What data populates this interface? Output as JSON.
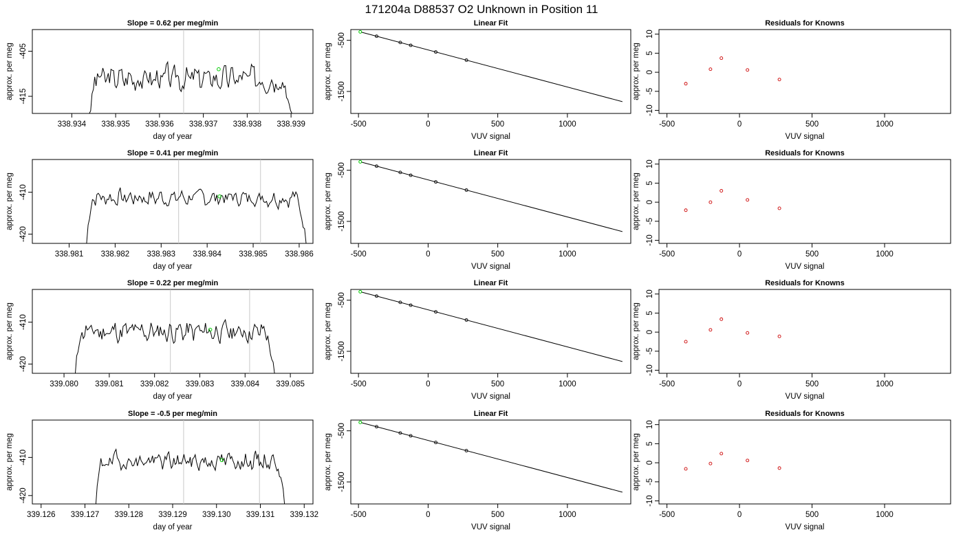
{
  "figure": {
    "title": "171204a      D88537   O2 Unknown in Position  11",
    "colors": {
      "trace": "#000000",
      "marker_green": "#00cc00",
      "marker_red": "#cc0000",
      "vline": "#c8c8c8"
    }
  },
  "chart_data": [
    {
      "type": "line",
      "row": 0,
      "col": 0,
      "title": "Slope =  0.62  per meg/min",
      "xlabel": "day of year",
      "ylabel": "approx. per meg",
      "xlim": [
        338.9331,
        338.9395
      ],
      "ylim": [
        -418.8,
        -400.2
      ],
      "xticks": [
        "338.934",
        "338.935",
        "338.936",
        "338.937",
        "338.938",
        "338.939"
      ],
      "yticks": [
        "-405",
        "-415"
      ],
      "vlines": [
        338.93655,
        338.93828
      ],
      "marker": {
        "x": 338.93735,
        "y": -409.0
      },
      "series": {
        "t_start": 338.9344,
        "t_end": 338.93902,
        "baseline": -411.0,
        "amplitude": 2.2,
        "edge_low": -419.5,
        "seed": 3
      }
    },
    {
      "type": "scatter",
      "row": 0,
      "col": 1,
      "title": "Linear Fit",
      "xlabel": "VUV signal",
      "ylabel": "approx. per meg",
      "xlim": [
        -555,
        1455
      ],
      "ylim": [
        -1930,
        -290
      ],
      "xticks": [
        "-500",
        "0",
        "500",
        "1000"
      ],
      "yticks": [
        "-500",
        "-1500"
      ],
      "fit_line": [
        [
          -480,
          -340
        ],
        [
          1395,
          -1700
        ]
      ],
      "points": [
        [
          -370,
          -420
        ],
        [
          -200,
          -543
        ],
        [
          -125,
          -598
        ],
        [
          55,
          -728
        ],
        [
          275,
          -888
        ]
      ],
      "highlight": [
        -487,
        -335
      ]
    },
    {
      "type": "scatter",
      "row": 0,
      "col": 2,
      "title": "Residuals for Knowns",
      "xlabel": "VUV signal",
      "ylabel": "approx. per meg",
      "xlim": [
        -555,
        1455
      ],
      "ylim": [
        -10.8,
        11.2
      ],
      "xticks": [
        "-500",
        "0",
        "500",
        "1000"
      ],
      "yticks": [
        "-10",
        "-5",
        "0",
        "5",
        "10"
      ],
      "points": [
        [
          -370,
          -3.0
        ],
        [
          -200,
          0.8
        ],
        [
          -125,
          3.7
        ],
        [
          55,
          0.6
        ],
        [
          275,
          -1.9
        ]
      ]
    },
    {
      "type": "line",
      "row": 1,
      "col": 0,
      "title": "Slope =  0.41  per meg/min",
      "xlabel": "day of year",
      "ylabel": "approx. per meg",
      "xlim": [
        338.9802,
        338.9863
      ],
      "ylim": [
        -422.2,
        -402.2
      ],
      "xticks": [
        "338.981",
        "338.982",
        "338.983",
        "338.984",
        "338.985",
        "338.986"
      ],
      "yticks": [
        "-410",
        "-420"
      ],
      "vlines": [
        338.98338,
        338.98516
      ],
      "marker": {
        "x": 338.98427,
        "y": -411.0
      },
      "series": {
        "t_start": 338.98138,
        "t_end": 338.98615,
        "baseline": -411.3,
        "amplitude": 1.6,
        "edge_low": -423.0,
        "seed": 7
      }
    },
    {
      "type": "scatter",
      "row": 1,
      "col": 1,
      "title": "Linear Fit",
      "xlabel": "VUV signal",
      "ylabel": "approx. per meg",
      "xlim": [
        -555,
        1455
      ],
      "ylim": [
        -1930,
        -290
      ],
      "xticks": [
        "-500",
        "0",
        "500",
        "1000"
      ],
      "yticks": [
        "-500",
        "-1500"
      ],
      "fit_line": [
        [
          -480,
          -340
        ],
        [
          1395,
          -1700
        ]
      ],
      "points": [
        [
          -370,
          -420
        ],
        [
          -200,
          -543
        ],
        [
          -125,
          -598
        ],
        [
          55,
          -728
        ],
        [
          275,
          -888
        ]
      ],
      "highlight": [
        -487,
        -335
      ]
    },
    {
      "type": "scatter",
      "row": 1,
      "col": 2,
      "title": "Residuals for Knowns",
      "xlabel": "VUV signal",
      "ylabel": "approx. per meg",
      "xlim": [
        -555,
        1455
      ],
      "ylim": [
        -10.8,
        11.2
      ],
      "xticks": [
        "-500",
        "0",
        "500",
        "1000"
      ],
      "yticks": [
        "-10",
        "-5",
        "0",
        "5",
        "10"
      ],
      "points": [
        [
          -370,
          -2.1
        ],
        [
          -200,
          0.0
        ],
        [
          -125,
          3.0
        ],
        [
          55,
          0.6
        ],
        [
          275,
          -1.6
        ]
      ]
    },
    {
      "type": "line",
      "row": 2,
      "col": 0,
      "title": "Slope =  0.22  per meg/min",
      "xlabel": "day of year",
      "ylabel": "approx. per meg",
      "xlim": [
        339.0793,
        339.0855
      ],
      "ylim": [
        -422.2,
        -402.2
      ],
      "xticks": [
        "339.080",
        "339.081",
        "339.082",
        "339.083",
        "339.084",
        "339.085"
      ],
      "yticks": [
        "-410",
        "-420"
      ],
      "vlines": [
        339.08235,
        339.0841
      ],
      "marker": {
        "x": 339.08323,
        "y": -411.8
      },
      "series": {
        "t_start": 339.08025,
        "t_end": 339.08465,
        "baseline": -412.3,
        "amplitude": 2.0,
        "edge_low": -423.0,
        "seed": 11
      }
    },
    {
      "type": "scatter",
      "row": 2,
      "col": 1,
      "title": "Linear Fit",
      "xlabel": "VUV signal",
      "ylabel": "approx. per meg",
      "xlim": [
        -555,
        1455
      ],
      "ylim": [
        -1930,
        -290
      ],
      "xticks": [
        "-500",
        "0",
        "500",
        "1000"
      ],
      "yticks": [
        "-500",
        "-1500"
      ],
      "fit_line": [
        [
          -480,
          -340
        ],
        [
          1395,
          -1700
        ]
      ],
      "points": [
        [
          -370,
          -420
        ],
        [
          -200,
          -543
        ],
        [
          -125,
          -598
        ],
        [
          55,
          -728
        ],
        [
          275,
          -888
        ]
      ],
      "highlight": [
        -487,
        -335
      ]
    },
    {
      "type": "scatter",
      "row": 2,
      "col": 2,
      "title": "Residuals for Knowns",
      "xlabel": "VUV signal",
      "ylabel": "approx. per meg",
      "xlim": [
        -555,
        1455
      ],
      "ylim": [
        -10.8,
        11.2
      ],
      "xticks": [
        "-500",
        "0",
        "500",
        "1000"
      ],
      "yticks": [
        "-10",
        "-5",
        "0",
        "5",
        "10"
      ],
      "points": [
        [
          -370,
          -2.5
        ],
        [
          -200,
          0.6
        ],
        [
          -125,
          3.4
        ],
        [
          55,
          -0.2
        ],
        [
          275,
          -1.1
        ]
      ]
    },
    {
      "type": "line",
      "row": 3,
      "col": 0,
      "title": "Slope =  -0.5  per meg/min",
      "xlabel": "day of year",
      "ylabel": "approx. per meg",
      "xlim": [
        339.1258,
        339.1322
      ],
      "ylim": [
        -422.2,
        -400.2
      ],
      "xticks": [
        "339.126",
        "339.127",
        "339.128",
        "339.129",
        "339.130",
        "339.131",
        "339.132"
      ],
      "yticks": [
        "-410",
        "-420"
      ],
      "vlines": [
        339.12925,
        339.13098
      ],
      "marker": {
        "x": 339.13012,
        "y": -410.7
      },
      "series": {
        "t_start": 339.12725,
        "t_end": 339.13155,
        "baseline": -411.0,
        "amplitude": 1.8,
        "edge_low": -423.0,
        "seed": 19
      }
    },
    {
      "type": "scatter",
      "row": 3,
      "col": 1,
      "title": "Linear Fit",
      "xlabel": "VUV signal",
      "ylabel": "approx. per meg",
      "xlim": [
        -555,
        1455
      ],
      "ylim": [
        -1930,
        -290
      ],
      "xticks": [
        "-500",
        "0",
        "500",
        "1000"
      ],
      "yticks": [
        "-500",
        "-1500"
      ],
      "fit_line": [
        [
          -480,
          -340
        ],
        [
          1395,
          -1700
        ]
      ],
      "points": [
        [
          -370,
          -420
        ],
        [
          -200,
          -543
        ],
        [
          -125,
          -598
        ],
        [
          55,
          -728
        ],
        [
          275,
          -888
        ]
      ],
      "highlight": [
        -487,
        -335
      ]
    },
    {
      "type": "scatter",
      "row": 3,
      "col": 2,
      "title": "Residuals for Knowns",
      "xlabel": "VUV signal",
      "ylabel": "approx. per meg",
      "xlim": [
        -555,
        1455
      ],
      "ylim": [
        -10.8,
        11.2
      ],
      "xticks": [
        "-500",
        "0",
        "500",
        "1000"
      ],
      "yticks": [
        "-10",
        "-5",
        "0",
        "5",
        "10"
      ],
      "points": [
        [
          -370,
          -1.6
        ],
        [
          -200,
          -0.2
        ],
        [
          -125,
          2.4
        ],
        [
          55,
          0.6
        ],
        [
          275,
          -1.4
        ]
      ]
    }
  ]
}
